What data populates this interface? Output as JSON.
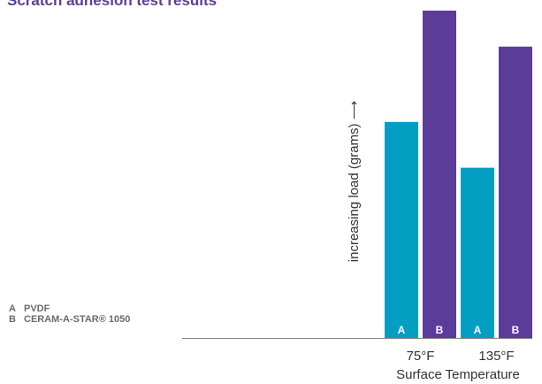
{
  "title": "Scratch adhesion test results",
  "legend": [
    {
      "key": "A",
      "label": "PVDF",
      "color": "#049ec3"
    },
    {
      "key": "B",
      "label": "CERAM-A-STAR® 1050",
      "color": "#5b3c98"
    }
  ],
  "chart_data": {
    "type": "bar",
    "title": "Scratch adhesion test results",
    "xlabel": "Surface Temperature",
    "ylabel": "increasing load (grams) ⟶",
    "categories": [
      "75°F",
      "135°F"
    ],
    "series": [
      {
        "name": "PVDF",
        "key": "A",
        "color": "#049ec3",
        "values": [
          66,
          52
        ]
      },
      {
        "name": "CERAM-A-STAR® 1050",
        "key": "B",
        "color": "#5b3c98",
        "values": [
          100,
          89
        ]
      }
    ],
    "ylim": [
      0,
      100
    ],
    "grid": false,
    "legend_position": "bottom-left"
  }
}
